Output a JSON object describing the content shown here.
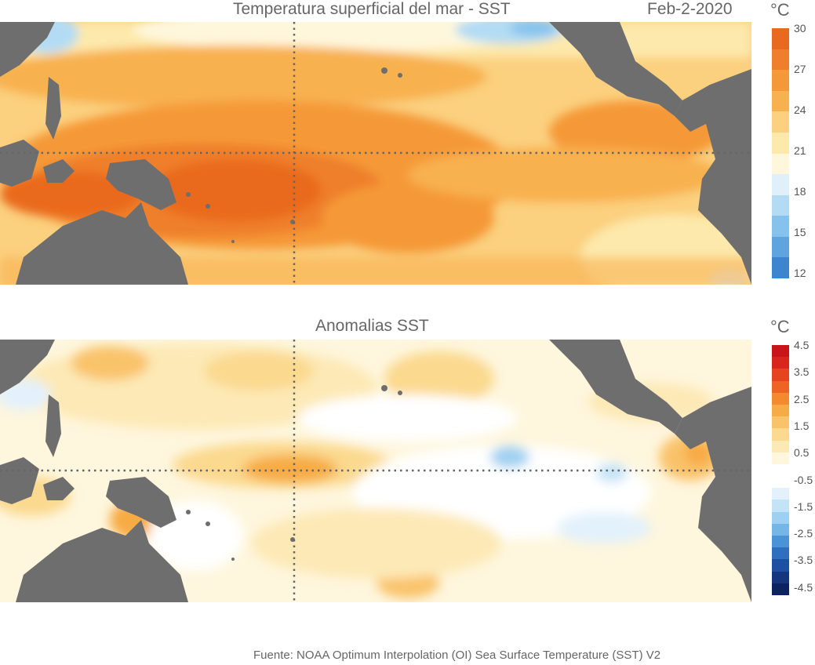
{
  "sst_panel": {
    "title": "Temperatura superficial del mar - SST",
    "date": "Feb-2-2020",
    "unit": "°C",
    "colorbar": {
      "ticks": [
        "30",
        "27",
        "24",
        "21",
        "18",
        "15",
        "12"
      ],
      "colors": [
        "#e96a1f",
        "#ef7f2a",
        "#f59938",
        "#f8b14f",
        "#fbd07f",
        "#fde9ac",
        "#fff7dc",
        "#e0f0fa",
        "#b3dcf4",
        "#86c2ec",
        "#5ea5e0",
        "#3d86cf"
      ]
    }
  },
  "anom_panel": {
    "title": "Anomalias SST",
    "unit": "°C",
    "colorbar": {
      "ticks": [
        "4.5",
        "3.5",
        "2.5",
        "1.5",
        "0.5",
        "-0.5",
        "-1.5",
        "-2.5",
        "-3.5",
        "-4.5"
      ],
      "colors": [
        "#c8141b",
        "#d9261c",
        "#e6431f",
        "#ee6523",
        "#f38a2e",
        "#f7ab45",
        "#f9c36a",
        "#fbd98f",
        "#fde9b6",
        "#fef6dd",
        "#ffffff",
        "#ffffff",
        "#e2f1fb",
        "#c3e3f7",
        "#9ed0f1",
        "#74b6e6",
        "#4a93d6",
        "#2f6fc0",
        "#1d4fa2",
        "#15357f",
        "#0d2260"
      ]
    }
  },
  "legend_colors": {
    "land": "#6e6e6e",
    "grid_line": "#666666"
  },
  "footer": "Fuente: NOAA Optimum Interpolation (OI) Sea Surface Temperature (SST) V2"
}
